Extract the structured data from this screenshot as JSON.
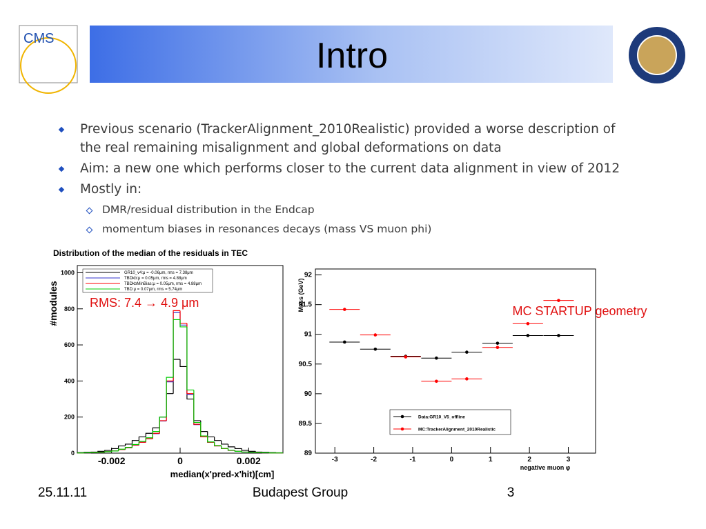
{
  "header": {
    "title": "Intro",
    "logo": "CMS"
  },
  "bullets": [
    {
      "text": "Previous scenario (TrackerAlignment_2010Realistic) provided a worse description of the real remaining misalignment and global deformations on data"
    },
    {
      "text": "Aim: a new one which performs closer to the current data alignment in view of 2012"
    },
    {
      "text": "Mostly in:",
      "sub": [
        "DMR/residual distribution in the Endcap",
        "momentum biases in resonances decays (mass VS muon phi)"
      ]
    }
  ],
  "footer": {
    "date": "25.11.11",
    "group": "Budapest Group",
    "page": "3"
  },
  "chart_data": [
    {
      "type": "histogram",
      "title": "Distribution of the median of the residuals in TEC",
      "xlabel": "median(x'pred-x'hit)[cm]",
      "ylabel": "#modules",
      "annotation": "RMS: 7.4 → 4.9 μm",
      "bins": [
        -0.003,
        -0.0028,
        -0.0026,
        -0.0024,
        -0.0022,
        -0.002,
        -0.0018,
        -0.0016,
        -0.0014,
        -0.0012,
        -0.001,
        -0.0008,
        -0.0006,
        -0.0004,
        -0.0002,
        0,
        0.0002,
        0.0004,
        0.0006,
        0.0008,
        0.001,
        0.0012,
        0.0014,
        0.0016,
        0.0018,
        0.002,
        0.0022,
        0.0024,
        0.0026,
        0.0028,
        0.003
      ],
      "series": [
        {
          "name": "GR10_v4:μ = -0.06μm, rms = 7.38μm",
          "color": "#000000",
          "values": [
            3,
            5,
            6,
            10,
            15,
            25,
            40,
            50,
            70,
            90,
            110,
            140,
            200,
            330,
            520,
            480,
            300,
            180,
            120,
            90,
            70,
            50,
            35,
            25,
            15,
            10,
            6,
            5,
            3,
            2
          ]
        },
        {
          "name": "TBDkb:μ = 0.05μm, rms = 4.88μm",
          "color": "#3333cc",
          "values": [
            1,
            2,
            3,
            5,
            8,
            12,
            20,
            30,
            44,
            60,
            80,
            108,
            178,
            395,
            780,
            710,
            325,
            158,
            90,
            60,
            40,
            25,
            15,
            10,
            6,
            4,
            3,
            2,
            1,
            1
          ]
        },
        {
          "name": "TBDkbMinBias:μ = 0.05μm, rms = 4.88μm",
          "color": "#ff0000",
          "values": [
            1,
            2,
            3,
            5,
            8,
            12,
            20,
            30,
            45,
            60,
            80,
            110,
            180,
            400,
            790,
            720,
            330,
            160,
            90,
            60,
            40,
            25,
            15,
            10,
            6,
            4,
            3,
            2,
            1,
            1
          ]
        },
        {
          "name": "TBD:μ = 0.07μm, rms = 5.74μm",
          "color": "#00cc00",
          "values": [
            1,
            2,
            3,
            5,
            8,
            12,
            22,
            32,
            48,
            65,
            85,
            120,
            200,
            420,
            740,
            700,
            350,
            170,
            95,
            62,
            42,
            26,
            16,
            10,
            6,
            4,
            3,
            2,
            1,
            1
          ]
        }
      ],
      "xlim": [
        -0.003,
        0.003
      ],
      "ylim": [
        0,
        1040
      ],
      "xticks": [
        -0.002,
        0,
        0.002
      ],
      "yticks": [
        0,
        200,
        400,
        600,
        800,
        1000
      ],
      "legend": "upper left"
    },
    {
      "type": "scatter",
      "xlabel": "negative muon φ",
      "ylabel": "Mass (GeV)",
      "annotation": "MC STARTUP geometry",
      "x": [
        -2.75,
        -1.96,
        -1.18,
        -0.39,
        0.39,
        1.18,
        1.96,
        2.75
      ],
      "xerr": [
        0.39,
        0.39,
        0.39,
        0.39,
        0.39,
        0.39,
        0.39,
        0.39
      ],
      "series": [
        {
          "name": "Data:GR10_V5_offline",
          "color": "#000000",
          "values": [
            90.87,
            90.75,
            90.63,
            90.6,
            90.7,
            90.85,
            90.98,
            90.98
          ]
        },
        {
          "name": "MC:TrackerAlignment_2010Realistic",
          "color": "#ff0000",
          "values": [
            91.42,
            90.99,
            90.62,
            90.21,
            90.25,
            90.78,
            91.18,
            91.57
          ]
        }
      ],
      "xlim": [
        -3.5,
        3.7
      ],
      "ylim": [
        89,
        92.1
      ],
      "xticks": [
        -3,
        -2,
        -1,
        0,
        1,
        2,
        3
      ],
      "yticks": [
        89,
        89.5,
        90,
        90.5,
        91,
        91.5,
        92
      ],
      "legend": "lower center"
    }
  ]
}
